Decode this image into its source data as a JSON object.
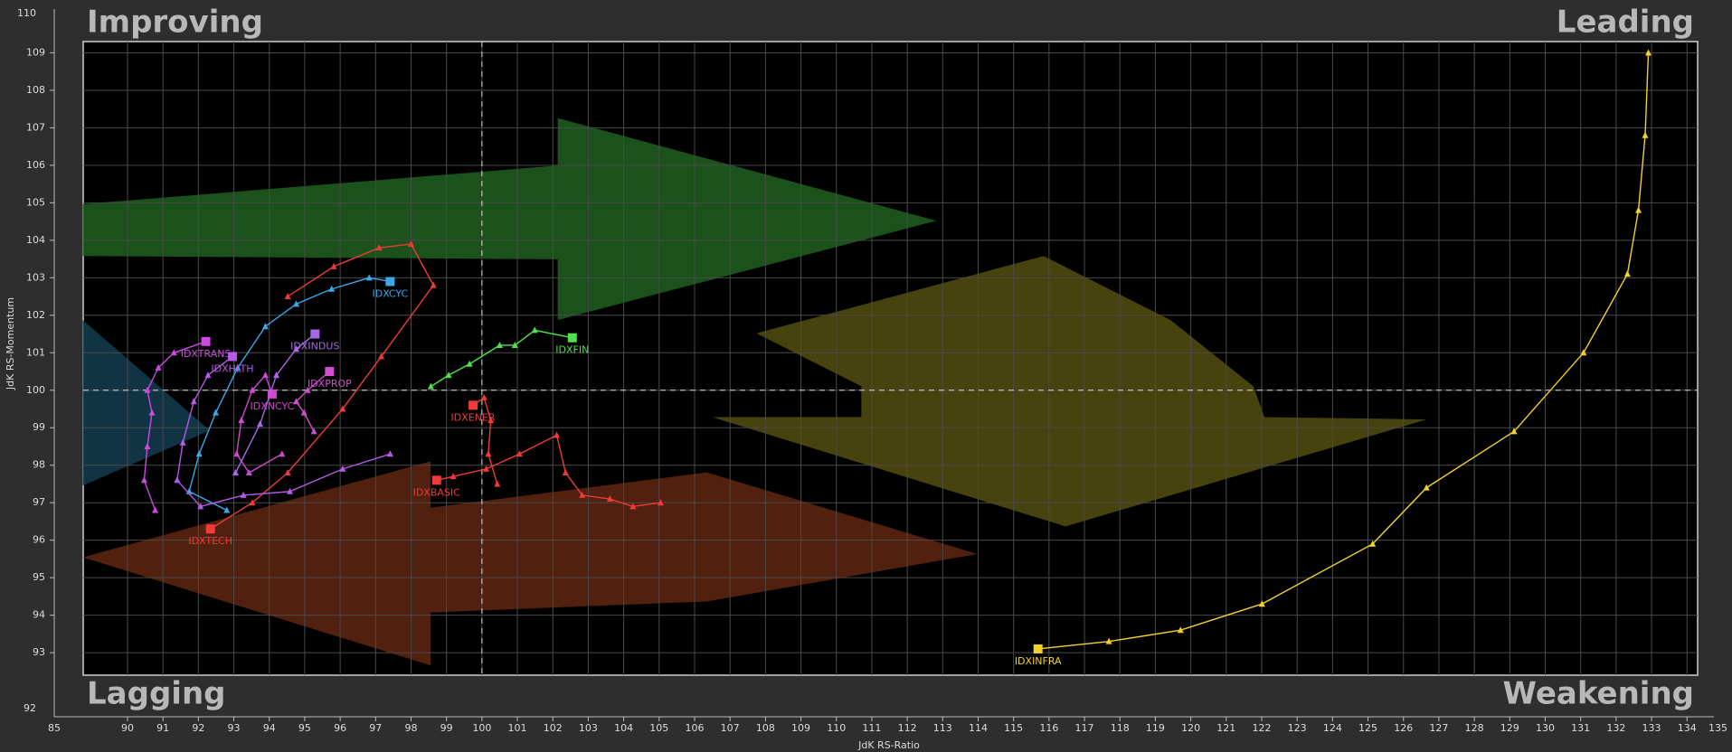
{
  "chart_data": {
    "type": "line",
    "x_label": "JdK RS-Ratio",
    "y_label": "JdK RS-Momentum",
    "quadrant_labels": [
      "Improving",
      "Leading",
      "Lagging",
      "Weakening"
    ],
    "xlim": [
      88.75,
      134.3
    ],
    "ylim": [
      92.4,
      109.3
    ],
    "xticks": [
      90,
      91,
      92,
      93,
      94,
      95,
      96,
      97,
      98,
      99,
      100,
      101,
      102,
      103,
      104,
      105,
      106,
      107,
      108,
      109,
      110,
      111,
      112,
      113,
      114,
      115,
      116,
      117,
      118,
      119,
      120,
      121,
      122,
      123,
      124,
      125,
      126,
      127,
      128,
      129,
      130,
      131,
      132,
      133,
      134
    ],
    "yticks": [
      93,
      94,
      95,
      96,
      97,
      98,
      99,
      100,
      101,
      102,
      103,
      104,
      105,
      106,
      107,
      108,
      109
    ],
    "x_frame_ticks": [
      85,
      135
    ],
    "y_frame_ticks": [
      92,
      110
    ],
    "center": [
      100,
      100
    ],
    "grid": true,
    "series": [
      {
        "name": "IDXINFRA",
        "color": "#f2d22a",
        "x": [
          132.91,
          132.82,
          132.63,
          132.32,
          131.08,
          129.12,
          126.65,
          125.13,
          122.01,
          119.71,
          117.69,
          115.69
        ],
        "y": [
          109.0,
          106.8,
          104.8,
          103.1,
          101.0,
          98.9,
          97.4,
          95.9,
          94.3,
          93.6,
          93.3,
          93.1
        ]
      },
      {
        "name": "IDXFIN",
        "color": "#4fe04f",
        "x": [
          98.56,
          99.06,
          99.65,
          100.5,
          100.93,
          101.49,
          102.55
        ],
        "y": [
          100.1,
          100.4,
          100.7,
          101.2,
          101.2,
          101.6,
          101.4
        ]
      },
      {
        "name": "IDXCYC",
        "color": "#3aa8e8",
        "x": [
          92.8,
          91.74,
          92.02,
          92.49,
          93.11,
          93.89,
          94.76,
          95.76,
          96.82,
          97.41
        ],
        "y": [
          96.8,
          97.3,
          98.3,
          99.4,
          100.6,
          101.7,
          102.3,
          102.7,
          103.0,
          102.9
        ]
      },
      {
        "name": "IDXTECH",
        "color": "#f03a3a",
        "x": [
          94.52,
          95.82,
          97.1,
          98.0,
          98.63,
          97.16,
          96.07,
          94.52,
          93.52,
          92.34
        ],
        "y": [
          102.5,
          103.3,
          103.8,
          103.9,
          102.8,
          100.9,
          99.5,
          97.8,
          97.0,
          96.3
        ]
      },
      {
        "name": "IDXTRANS",
        "color": "#cc48e0",
        "x": [
          90.78,
          90.47,
          90.56,
          90.69,
          90.56,
          90.87,
          91.31,
          92.21
        ],
        "y": [
          96.8,
          97.6,
          98.5,
          99.4,
          100.0,
          100.6,
          101.0,
          101.3
        ]
      },
      {
        "name": "IDXHLTH",
        "color": "#b45ae6",
        "x": [
          97.41,
          96.07,
          94.58,
          93.27,
          92.06,
          91.4,
          91.56,
          91.87,
          92.27,
          92.96
        ],
        "y": [
          98.3,
          97.9,
          97.3,
          97.2,
          96.9,
          97.6,
          98.6,
          99.7,
          100.4,
          100.9
        ]
      },
      {
        "name": "IDXNCYC",
        "color": "#d048d0",
        "x": [
          94.36,
          93.43,
          93.08,
          93.21,
          93.52,
          93.89,
          94.08
        ],
        "y": [
          98.3,
          97.8,
          98.3,
          99.2,
          100.0,
          100.4,
          99.9
        ]
      },
      {
        "name": "IDXINDUS",
        "color": "#a868ea",
        "x": [
          93.05,
          93.74,
          94.2,
          94.76,
          95.29
        ],
        "y": [
          97.8,
          99.1,
          100.4,
          101.1,
          101.5
        ]
      },
      {
        "name": "IDXPROP",
        "color": "#d04cd0",
        "x": [
          95.26,
          94.98,
          94.76,
          95.08,
          95.7
        ],
        "y": [
          98.9,
          99.4,
          99.7,
          100.0,
          100.5
        ]
      },
      {
        "name": "IDXENER",
        "color": "#f03a3a",
        "x": [
          100.43,
          100.18,
          100.25,
          100.06,
          99.75
        ],
        "y": [
          97.5,
          98.3,
          99.2,
          99.8,
          99.6
        ]
      },
      {
        "name": "IDXBASIC",
        "color": "#f03a3a",
        "x": [
          105.04,
          104.26,
          103.61,
          102.83,
          102.36,
          102.11,
          101.06,
          100.12,
          99.19,
          98.72
        ],
        "y": [
          97.0,
          96.9,
          97.1,
          97.2,
          97.8,
          98.8,
          98.3,
          97.9,
          97.7,
          97.6
        ]
      }
    ]
  }
}
